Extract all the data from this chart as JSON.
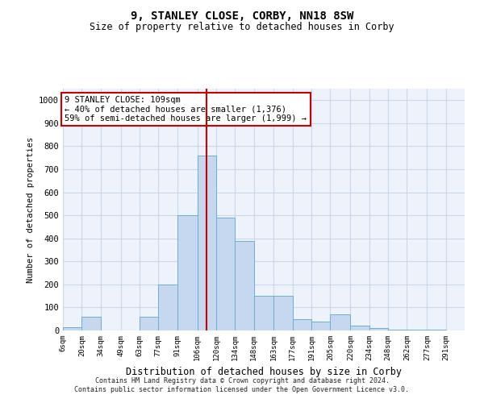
{
  "title": "9, STANLEY CLOSE, CORBY, NN18 8SW",
  "subtitle": "Size of property relative to detached houses in Corby",
  "xlabel": "Distribution of detached houses by size in Corby",
  "ylabel": "Number of detached properties",
  "bar_color": "#c5d8f0",
  "bar_edge_color": "#6baed6",
  "grid_color": "#c8d8ec",
  "background_color": "#eef2fa",
  "annotation_box_color": "#cc0000",
  "vline_color": "#cc0000",
  "vline_x": 113,
  "annotation_text": "9 STANLEY CLOSE: 109sqm\n← 40% of detached houses are smaller (1,376)\n59% of semi-detached houses are larger (1,999) →",
  "footer": "Contains HM Land Registry data © Crown copyright and database right 2024.\nContains public sector information licensed under the Open Government Licence v3.0.",
  "bins": [
    6,
    20,
    34,
    49,
    63,
    77,
    91,
    106,
    120,
    134,
    148,
    163,
    177,
    191,
    205,
    220,
    234,
    248,
    262,
    277,
    291,
    305
  ],
  "heights": [
    15,
    60,
    0,
    0,
    60,
    200,
    500,
    760,
    490,
    390,
    150,
    150,
    50,
    40,
    70,
    20,
    10,
    5,
    5,
    5,
    0
  ],
  "ylim": [
    0,
    1050
  ],
  "yticks": [
    0,
    100,
    200,
    300,
    400,
    500,
    600,
    700,
    800,
    900,
    1000
  ],
  "xtick_labels": [
    "6sqm",
    "20sqm",
    "34sqm",
    "49sqm",
    "63sqm",
    "77sqm",
    "91sqm",
    "106sqm",
    "120sqm",
    "134sqm",
    "148sqm",
    "163sqm",
    "177sqm",
    "191sqm",
    "205sqm",
    "220sqm",
    "234sqm",
    "248sqm",
    "262sqm",
    "277sqm",
    "291sqm"
  ]
}
